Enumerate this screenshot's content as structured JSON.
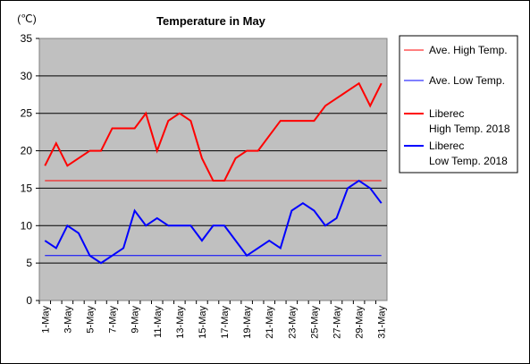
{
  "chart_data": {
    "type": "line",
    "title": "Temperature in May",
    "ylabel": "(℃)",
    "xlabel": "",
    "ylim": [
      0,
      35
    ],
    "yticks": [
      0,
      5,
      10,
      15,
      20,
      25,
      30,
      35
    ],
    "grid": true,
    "legend_position": "right",
    "categories": [
      "1-May",
      "2-May",
      "3-May",
      "4-May",
      "5-May",
      "6-May",
      "7-May",
      "8-May",
      "9-May",
      "10-May",
      "11-May",
      "12-May",
      "13-May",
      "14-May",
      "15-May",
      "16-May",
      "17-May",
      "18-May",
      "19-May",
      "20-May",
      "21-May",
      "22-May",
      "23-May",
      "24-May",
      "25-May",
      "26-May",
      "27-May",
      "28-May",
      "29-May",
      "30-May",
      "31-May"
    ],
    "tick_labels": [
      "1-May",
      "3-May",
      "5-May",
      "7-May",
      "9-May",
      "11-May",
      "13-May",
      "15-May",
      "17-May",
      "19-May",
      "21-May",
      "23-May",
      "25-May",
      "27-May",
      "29-May",
      "31-May"
    ],
    "series": [
      {
        "name": "Ave. High Temp.",
        "color": "#ff0000",
        "width": 1,
        "values": [
          16,
          16,
          16,
          16,
          16,
          16,
          16,
          16,
          16,
          16,
          16,
          16,
          16,
          16,
          16,
          16,
          16,
          16,
          16,
          16,
          16,
          16,
          16,
          16,
          16,
          16,
          16,
          16,
          16,
          16,
          16
        ]
      },
      {
        "name": "Ave. Low Temp.",
        "color": "#0000ff",
        "width": 1,
        "values": [
          6,
          6,
          6,
          6,
          6,
          6,
          6,
          6,
          6,
          6,
          6,
          6,
          6,
          6,
          6,
          6,
          6,
          6,
          6,
          6,
          6,
          6,
          6,
          6,
          6,
          6,
          6,
          6,
          6,
          6,
          6
        ]
      },
      {
        "name": "Liberec\nHigh Temp. 2018",
        "color": "#ff0000",
        "width": 2,
        "values": [
          18,
          21,
          18,
          19,
          20,
          20,
          23,
          23,
          23,
          25,
          20,
          24,
          25,
          24,
          19,
          16,
          16,
          19,
          20,
          20,
          22,
          24,
          24,
          24,
          24,
          26,
          27,
          28,
          29,
          26,
          29
        ]
      },
      {
        "name": "Liberec\nLow Temp. 2018",
        "color": "#0000ff",
        "width": 2,
        "values": [
          8,
          7,
          10,
          9,
          6,
          5,
          6,
          7,
          12,
          10,
          11,
          10,
          10,
          10,
          8,
          10,
          10,
          8,
          6,
          7,
          8,
          7,
          12,
          13,
          12,
          10,
          11,
          15,
          16,
          15,
          13
        ]
      }
    ]
  }
}
